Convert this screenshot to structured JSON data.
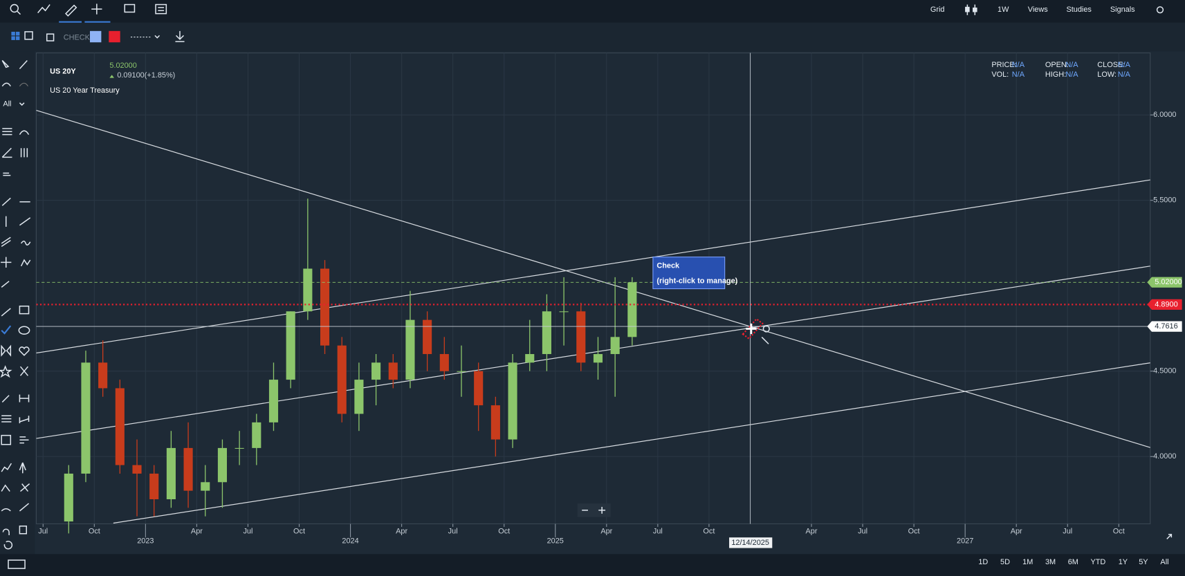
{
  "toolbar": {
    "right_menus": [
      "Grid",
      "1W",
      "Views",
      "Studies",
      "Signals"
    ]
  },
  "drawing_bar": {
    "label": "CHECK:"
  },
  "left_toolbar": {
    "filter": "All"
  },
  "range_buttons": [
    "1D",
    "5D",
    "1M",
    "3M",
    "6M",
    "YTD",
    "1Y",
    "5Y",
    "All"
  ],
  "chart_data": {
    "type": "candlestick",
    "title": "US 20Y",
    "subtitle": "US 20 Year Treasury",
    "last_price": "5.02000",
    "change": "0.09100(+1.85%)",
    "info": [
      {
        "label": "PRICE:",
        "value": "N/A"
      },
      {
        "label": "OPEN:",
        "value": "N/A"
      },
      {
        "label": "CLOSE:",
        "value": "N/A"
      },
      {
        "label": "VOL:",
        "value": "N/A"
      },
      {
        "label": "HIGH:",
        "value": "N/A"
      },
      {
        "label": "LOW:",
        "value": "N/A"
      }
    ],
    "x": [
      "2022-08",
      "2022-09",
      "2022-10",
      "2022-11",
      "2022-12",
      "2023-01",
      "2023-02",
      "2023-03",
      "2023-04",
      "2023-05",
      "2023-06",
      "2023-07",
      "2023-08",
      "2023-09",
      "2023-10",
      "2023-11",
      "2023-12",
      "2024-01",
      "2024-02",
      "2024-03",
      "2024-04",
      "2024-05",
      "2024-06",
      "2024-07",
      "2024-08",
      "2024-09",
      "2024-10",
      "2024-11",
      "2024-12",
      "2025-01",
      "2025-02",
      "2025-03",
      "2025-04",
      "2025-05"
    ],
    "open": [
      3.62,
      3.9,
      4.55,
      4.4,
      3.95,
      3.9,
      3.75,
      4.05,
      3.8,
      3.85,
      4.05,
      4.05,
      4.2,
      4.45,
      4.85,
      5.1,
      4.65,
      4.25,
      4.45,
      4.55,
      4.45,
      4.8,
      4.6,
      4.5,
      4.5,
      4.3,
      4.1,
      4.55,
      4.6,
      4.85,
      4.85,
      4.55,
      4.6,
      4.7
    ],
    "high": [
      3.95,
      4.62,
      4.68,
      4.45,
      4.1,
      3.95,
      4.15,
      4.2,
      3.95,
      4.1,
      4.15,
      4.25,
      4.55,
      4.85,
      5.51,
      5.15,
      4.7,
      4.55,
      4.6,
      4.6,
      4.97,
      4.85,
      4.7,
      4.65,
      4.55,
      4.35,
      4.6,
      4.8,
      4.95,
      5.05,
      4.9,
      4.7,
      5.05,
      5.05
    ],
    "low": [
      3.55,
      3.85,
      4.35,
      3.9,
      3.65,
      3.65,
      3.7,
      3.7,
      3.65,
      3.7,
      3.95,
      3.95,
      4.15,
      4.4,
      4.8,
      4.6,
      4.2,
      4.15,
      4.3,
      4.4,
      4.4,
      4.5,
      4.45,
      4.35,
      4.15,
      4.0,
      4.05,
      4.5,
      4.5,
      4.65,
      4.5,
      4.45,
      4.35,
      4.65
    ],
    "close": [
      3.9,
      4.55,
      4.4,
      3.95,
      3.9,
      3.75,
      4.05,
      3.8,
      3.85,
      4.05,
      4.05,
      4.2,
      4.45,
      4.85,
      5.1,
      4.65,
      4.25,
      4.45,
      4.55,
      4.45,
      4.8,
      4.6,
      4.5,
      4.5,
      4.3,
      4.1,
      4.55,
      4.6,
      4.85,
      4.85,
      4.55,
      4.6,
      4.7,
      5.02
    ],
    "up_color": "#8cc56b",
    "down_color": "#c83c1c",
    "xlim": [
      "2022-07",
      "2027-11"
    ],
    "xticks": [
      {
        "value": "2022-07",
        "label": "Jul"
      },
      {
        "value": "2022-10",
        "label": "Oct"
      },
      {
        "value": "2023-01",
        "label": "2023"
      },
      {
        "value": "2023-04",
        "label": "Apr"
      },
      {
        "value": "2023-07",
        "label": "Jul"
      },
      {
        "value": "2023-10",
        "label": "Oct"
      },
      {
        "value": "2024-01",
        "label": "2024"
      },
      {
        "value": "2024-04",
        "label": "Apr"
      },
      {
        "value": "2024-07",
        "label": "Jul"
      },
      {
        "value": "2024-10",
        "label": "Oct"
      },
      {
        "value": "2025-01",
        "label": "2025"
      },
      {
        "value": "2025-04",
        "label": "Apr"
      },
      {
        "value": "2025-07",
        "label": "Jul"
      },
      {
        "value": "2025-10",
        "label": "Oct"
      },
      {
        "value": "2026-04",
        "label": "Apr"
      },
      {
        "value": "2026-07",
        "label": "Jul"
      },
      {
        "value": "2026-10",
        "label": "Oct"
      },
      {
        "value": "2027-01",
        "label": "2027"
      },
      {
        "value": "2027-04",
        "label": "Apr"
      },
      {
        "value": "2027-07",
        "label": "Jul"
      },
      {
        "value": "2027-10",
        "label": "Oct"
      }
    ],
    "ylim": [
      3.606,
      6.363
    ],
    "yticks": [
      {
        "value": 4,
        "label": "4.0000"
      },
      {
        "value": 4.5,
        "label": "4.5000"
      },
      {
        "value": 5.5,
        "label": "5.5000"
      },
      {
        "value": 6,
        "label": "6.0000"
      }
    ],
    "grid": true,
    "price_lines": [
      {
        "value": 5.02,
        "label": "5.02000",
        "color": "#8cc56b"
      },
      {
        "value": 4.89,
        "label": "4.8900",
        "color": "#e8202e"
      },
      {
        "value": 4.7616,
        "label": "4.7616",
        "color": "#ffffff"
      }
    ],
    "crosshair": {
      "x_label": "12/14/2025"
    },
    "annotation": {
      "title": "Check",
      "text": "(right-click to manage)"
    }
  }
}
